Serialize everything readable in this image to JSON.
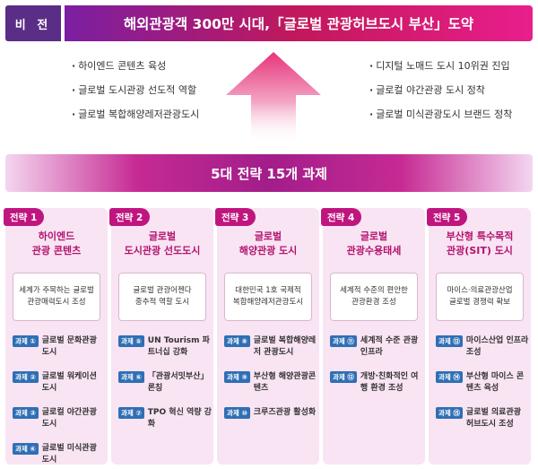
{
  "vision": {
    "label": "비 전",
    "title": "해외관광객 300만 시대,「글로벌 관광허브도시 부산」도약"
  },
  "goals_left": [
    "하이엔드 콘텐츠 육성",
    "글로벌 도시관광 선도적 역할",
    "글로벌 복합해양레저관광도시"
  ],
  "goals_right": [
    "디지털 노매드 도시 10위권 진입",
    "글로컬 야간관광 도시 정착",
    "글로벌 미식관광도시 브랜드 정착"
  ],
  "strategy_banner": "5대 전략 15개 과제",
  "colors": {
    "tag": "#c0157f",
    "badge": "#2f6fb5",
    "title": "#b3126f",
    "panel": "#f8e4f3"
  },
  "strategies": [
    {
      "tag": "전략 1",
      "title": [
        "하이엔드",
        "관광 콘텐츠"
      ],
      "desc": [
        "세계가 주목하는 글로벌",
        "관광매력도시 조성"
      ],
      "tasks": [
        {
          "badge": "과제 ①",
          "text": "글로벌 문화관광 도시"
        },
        {
          "badge": "과제 ②",
          "text": "글로벌 워케이션 도시"
        },
        {
          "badge": "과제 ③",
          "text": "글로컬 야간관광 도시"
        },
        {
          "badge": "과제 ④",
          "text": "글로벌 미식관광 도시"
        }
      ]
    },
    {
      "tag": "전략 2",
      "title": [
        "글로벌",
        "도시관광 선도도시"
      ],
      "desc": [
        "글로벌 관광어젠다",
        "중추적 역할 도시"
      ],
      "tasks": [
        {
          "badge": "과제 ⑤",
          "text": "UN Tourism 파트너십 강화"
        },
        {
          "badge": "과제 ⑥",
          "text": "「관광서밋부산」 론칭"
        },
        {
          "badge": "과제 ⑦",
          "text": "TPO 혁신 역량 강화"
        }
      ]
    },
    {
      "tag": "전략 3",
      "title": [
        "글로벌",
        "해양관광 도시"
      ],
      "desc": [
        "대한민국 1호 국제적",
        "복합해양레저관광도시"
      ],
      "tasks": [
        {
          "badge": "과제 ⑧",
          "text": "글로벌 복합해양레저 관광도시"
        },
        {
          "badge": "과제 ⑨",
          "text": "부산형 해양관광콘텐츠"
        },
        {
          "badge": "과제 ⑩",
          "text": "크루즈관광 활성화"
        }
      ]
    },
    {
      "tag": "전략 4",
      "title": [
        "글로벌",
        "관광수용태세"
      ],
      "desc": [
        "세계적 수준의 편안한",
        "관광환경 조성"
      ],
      "tasks": [
        {
          "badge": "과제 ⑪",
          "text": "세계적 수준 관광 인프라"
        },
        {
          "badge": "과제 ⑫",
          "text": "개방·친화적인 여행 환경 조성"
        }
      ]
    },
    {
      "tag": "전략 5",
      "title": [
        "부산형 특수목적",
        "관광(SIT) 도시"
      ],
      "desc": [
        "마이스·의료관광산업",
        "글로벌 경쟁력 확보"
      ],
      "tasks": [
        {
          "badge": "과제 ⑬",
          "text": "마이스산업 인프라 조성"
        },
        {
          "badge": "과제 ⑭",
          "text": "부산형 마이스 콘텐츠 육성"
        },
        {
          "badge": "과제 ⑮",
          "text": "글로벌 의료관광 허브도시 조성"
        }
      ]
    }
  ]
}
